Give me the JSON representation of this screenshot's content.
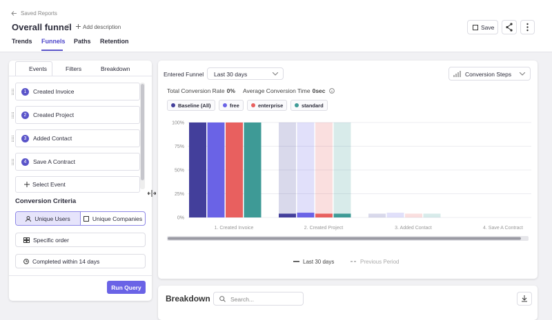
{
  "header": {
    "back_link": "Saved Reports",
    "title": "Overall funnel",
    "add_description": "Add description",
    "save": "Save",
    "tabs": [
      "Trends",
      "Funnels",
      "Paths",
      "Retention"
    ]
  },
  "sidebar": {
    "tabs": [
      "Events",
      "Filters",
      "Breakdown"
    ],
    "events": [
      {
        "number": 1,
        "name": "Created Invoice"
      },
      {
        "number": 2,
        "name": "Created Project"
      },
      {
        "number": 3,
        "name": "Added Contact"
      },
      {
        "number": 4,
        "name": "Save A Contract"
      }
    ],
    "select_event": "Select Event",
    "criteria_title": "Conversion Criteria",
    "criteria_options": [
      "Unique Users",
      "Unique Companies"
    ],
    "order": "Specific order",
    "window": "Completed within 14 days",
    "run": "Run Query"
  },
  "controls": {
    "entered_label": "Entered Funnel",
    "range": "Last 30 days",
    "view": "Conversion Steps",
    "total_label": "Total Conversion Rate",
    "total_value": "0%",
    "avg_label": "Average Conversion Time",
    "avg_value": "0sec"
  },
  "chart_data": {
    "type": "bar",
    "categories": [
      "1. Created Invoice",
      "2. Created Project",
      "3. Added Contact",
      "4. Save A Contract"
    ],
    "series": [
      {
        "name": "Baseline (All)",
        "color": "#433f9b",
        "values": [
          100,
          4,
          0,
          0
        ]
      },
      {
        "name": "free",
        "color": "#6a63e6",
        "values": [
          100,
          5,
          0,
          0
        ]
      },
      {
        "name": "enterprise",
        "color": "#e8605f",
        "values": [
          100,
          4,
          0,
          0
        ]
      },
      {
        "name": "standard",
        "color": "#3e9a96",
        "values": [
          100,
          4,
          0,
          0
        ]
      }
    ],
    "ylim": [
      0,
      100
    ],
    "yticks": [
      {
        "value": 0,
        "label": "0%"
      },
      {
        "value": 25,
        "label": "25%"
      },
      {
        "value": 50,
        "label": "50%"
      },
      {
        "value": 75,
        "label": "75%"
      },
      {
        "value": 100,
        "label": "100%"
      }
    ],
    "grid": true,
    "bottom_legend": [
      "Last 30 days",
      "Previous Period"
    ]
  },
  "breakdown": {
    "title": "Breakdown",
    "search_placeholder": "Search..."
  }
}
